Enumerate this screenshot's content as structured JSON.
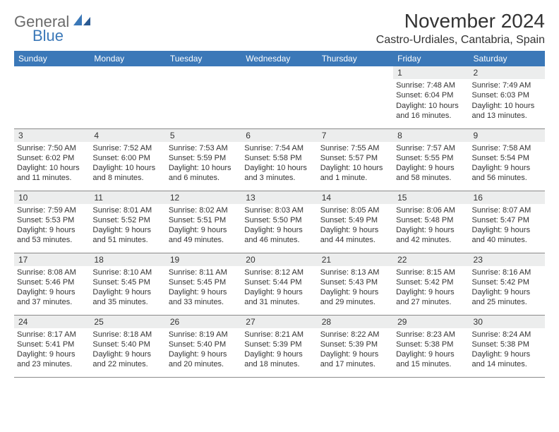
{
  "brand": {
    "word1": "General",
    "word2": "Blue",
    "color1": "#6b6b6b",
    "color2": "#3b78b8"
  },
  "title": "November 2024",
  "location": "Castro-Urdiales, Cantabria, Spain",
  "weekdays": [
    "Sunday",
    "Monday",
    "Tuesday",
    "Wednesday",
    "Thursday",
    "Friday",
    "Saturday"
  ],
  "colors": {
    "headerBg": "#3b78b8",
    "headerFg": "#ffffff",
    "stripe": "#eceded",
    "rule": "#8a8a8a",
    "text": "#333333"
  },
  "weeks": [
    [
      {
        "n": "",
        "sr": "",
        "ss": "",
        "dl": ""
      },
      {
        "n": "",
        "sr": "",
        "ss": "",
        "dl": ""
      },
      {
        "n": "",
        "sr": "",
        "ss": "",
        "dl": ""
      },
      {
        "n": "",
        "sr": "",
        "ss": "",
        "dl": ""
      },
      {
        "n": "",
        "sr": "",
        "ss": "",
        "dl": ""
      },
      {
        "n": "1",
        "sr": "Sunrise: 7:48 AM",
        "ss": "Sunset: 6:04 PM",
        "dl": "Daylight: 10 hours and 16 minutes."
      },
      {
        "n": "2",
        "sr": "Sunrise: 7:49 AM",
        "ss": "Sunset: 6:03 PM",
        "dl": "Daylight: 10 hours and 13 minutes."
      }
    ],
    [
      {
        "n": "3",
        "sr": "Sunrise: 7:50 AM",
        "ss": "Sunset: 6:02 PM",
        "dl": "Daylight: 10 hours and 11 minutes."
      },
      {
        "n": "4",
        "sr": "Sunrise: 7:52 AM",
        "ss": "Sunset: 6:00 PM",
        "dl": "Daylight: 10 hours and 8 minutes."
      },
      {
        "n": "5",
        "sr": "Sunrise: 7:53 AM",
        "ss": "Sunset: 5:59 PM",
        "dl": "Daylight: 10 hours and 6 minutes."
      },
      {
        "n": "6",
        "sr": "Sunrise: 7:54 AM",
        "ss": "Sunset: 5:58 PM",
        "dl": "Daylight: 10 hours and 3 minutes."
      },
      {
        "n": "7",
        "sr": "Sunrise: 7:55 AM",
        "ss": "Sunset: 5:57 PM",
        "dl": "Daylight: 10 hours and 1 minute."
      },
      {
        "n": "8",
        "sr": "Sunrise: 7:57 AM",
        "ss": "Sunset: 5:55 PM",
        "dl": "Daylight: 9 hours and 58 minutes."
      },
      {
        "n": "9",
        "sr": "Sunrise: 7:58 AM",
        "ss": "Sunset: 5:54 PM",
        "dl": "Daylight: 9 hours and 56 minutes."
      }
    ],
    [
      {
        "n": "10",
        "sr": "Sunrise: 7:59 AM",
        "ss": "Sunset: 5:53 PM",
        "dl": "Daylight: 9 hours and 53 minutes."
      },
      {
        "n": "11",
        "sr": "Sunrise: 8:01 AM",
        "ss": "Sunset: 5:52 PM",
        "dl": "Daylight: 9 hours and 51 minutes."
      },
      {
        "n": "12",
        "sr": "Sunrise: 8:02 AM",
        "ss": "Sunset: 5:51 PM",
        "dl": "Daylight: 9 hours and 49 minutes."
      },
      {
        "n": "13",
        "sr": "Sunrise: 8:03 AM",
        "ss": "Sunset: 5:50 PM",
        "dl": "Daylight: 9 hours and 46 minutes."
      },
      {
        "n": "14",
        "sr": "Sunrise: 8:05 AM",
        "ss": "Sunset: 5:49 PM",
        "dl": "Daylight: 9 hours and 44 minutes."
      },
      {
        "n": "15",
        "sr": "Sunrise: 8:06 AM",
        "ss": "Sunset: 5:48 PM",
        "dl": "Daylight: 9 hours and 42 minutes."
      },
      {
        "n": "16",
        "sr": "Sunrise: 8:07 AM",
        "ss": "Sunset: 5:47 PM",
        "dl": "Daylight: 9 hours and 40 minutes."
      }
    ],
    [
      {
        "n": "17",
        "sr": "Sunrise: 8:08 AM",
        "ss": "Sunset: 5:46 PM",
        "dl": "Daylight: 9 hours and 37 minutes."
      },
      {
        "n": "18",
        "sr": "Sunrise: 8:10 AM",
        "ss": "Sunset: 5:45 PM",
        "dl": "Daylight: 9 hours and 35 minutes."
      },
      {
        "n": "19",
        "sr": "Sunrise: 8:11 AM",
        "ss": "Sunset: 5:45 PM",
        "dl": "Daylight: 9 hours and 33 minutes."
      },
      {
        "n": "20",
        "sr": "Sunrise: 8:12 AM",
        "ss": "Sunset: 5:44 PM",
        "dl": "Daylight: 9 hours and 31 minutes."
      },
      {
        "n": "21",
        "sr": "Sunrise: 8:13 AM",
        "ss": "Sunset: 5:43 PM",
        "dl": "Daylight: 9 hours and 29 minutes."
      },
      {
        "n": "22",
        "sr": "Sunrise: 8:15 AM",
        "ss": "Sunset: 5:42 PM",
        "dl": "Daylight: 9 hours and 27 minutes."
      },
      {
        "n": "23",
        "sr": "Sunrise: 8:16 AM",
        "ss": "Sunset: 5:42 PM",
        "dl": "Daylight: 9 hours and 25 minutes."
      }
    ],
    [
      {
        "n": "24",
        "sr": "Sunrise: 8:17 AM",
        "ss": "Sunset: 5:41 PM",
        "dl": "Daylight: 9 hours and 23 minutes."
      },
      {
        "n": "25",
        "sr": "Sunrise: 8:18 AM",
        "ss": "Sunset: 5:40 PM",
        "dl": "Daylight: 9 hours and 22 minutes."
      },
      {
        "n": "26",
        "sr": "Sunrise: 8:19 AM",
        "ss": "Sunset: 5:40 PM",
        "dl": "Daylight: 9 hours and 20 minutes."
      },
      {
        "n": "27",
        "sr": "Sunrise: 8:21 AM",
        "ss": "Sunset: 5:39 PM",
        "dl": "Daylight: 9 hours and 18 minutes."
      },
      {
        "n": "28",
        "sr": "Sunrise: 8:22 AM",
        "ss": "Sunset: 5:39 PM",
        "dl": "Daylight: 9 hours and 17 minutes."
      },
      {
        "n": "29",
        "sr": "Sunrise: 8:23 AM",
        "ss": "Sunset: 5:38 PM",
        "dl": "Daylight: 9 hours and 15 minutes."
      },
      {
        "n": "30",
        "sr": "Sunrise: 8:24 AM",
        "ss": "Sunset: 5:38 PM",
        "dl": "Daylight: 9 hours and 14 minutes."
      }
    ]
  ]
}
